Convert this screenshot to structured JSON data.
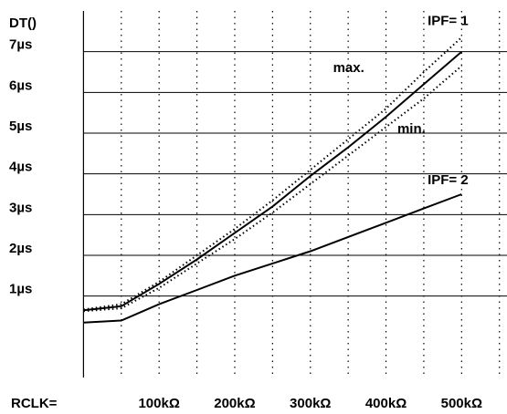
{
  "chart_data": {
    "type": "line",
    "y_axis_title": "DT()",
    "x_axis_title": "RCLK=",
    "x_unit": "kΩ",
    "y_unit": "µs",
    "xlim": [
      0,
      500
    ],
    "ylim": [
      0,
      8
    ],
    "grid": {
      "vertical_dotted": true,
      "horizontal_solid": true
    },
    "x_tick_labels": [
      "100kΩ",
      "200kΩ",
      "300kΩ",
      "400kΩ",
      "500kΩ"
    ],
    "x_tick_values": [
      100,
      200,
      300,
      400,
      500
    ],
    "y_tick_labels": [
      "1µs",
      "2µs",
      "3µs",
      "4µs",
      "5µs",
      "6µs",
      "7µs"
    ],
    "y_tick_values": [
      1,
      2,
      3,
      4,
      5,
      6,
      7
    ],
    "series": [
      {
        "name": "IPF= 1",
        "style": "solid",
        "points": [
          [
            0,
            0.65
          ],
          [
            50,
            0.75
          ],
          [
            100,
            1.3
          ],
          [
            150,
            1.9
          ],
          [
            200,
            2.55
          ],
          [
            250,
            3.2
          ],
          [
            300,
            3.95
          ],
          [
            350,
            4.65
          ],
          [
            400,
            5.4
          ],
          [
            450,
            6.2
          ],
          [
            500,
            7.0
          ]
        ]
      },
      {
        "name": "max.",
        "style": "dotted",
        "points": [
          [
            0,
            0.67
          ],
          [
            50,
            0.8
          ],
          [
            100,
            1.35
          ],
          [
            150,
            2.0
          ],
          [
            200,
            2.65
          ],
          [
            250,
            3.35
          ],
          [
            300,
            4.1
          ],
          [
            350,
            4.85
          ],
          [
            400,
            5.6
          ],
          [
            450,
            6.5
          ],
          [
            500,
            7.35
          ]
        ]
      },
      {
        "name": "min.",
        "style": "dotted",
        "points": [
          [
            0,
            0.63
          ],
          [
            50,
            0.7
          ],
          [
            100,
            1.2
          ],
          [
            150,
            1.8
          ],
          [
            200,
            2.4
          ],
          [
            250,
            3.05
          ],
          [
            300,
            3.75
          ],
          [
            350,
            4.45
          ],
          [
            400,
            5.15
          ],
          [
            450,
            5.85
          ],
          [
            500,
            6.65
          ]
        ]
      },
      {
        "name": "IPF= 2",
        "style": "solid",
        "points": [
          [
            0,
            0.35
          ],
          [
            50,
            0.4
          ],
          [
            100,
            0.8
          ],
          [
            150,
            1.15
          ],
          [
            200,
            1.5
          ],
          [
            250,
            1.8
          ],
          [
            300,
            2.1
          ],
          [
            350,
            2.45
          ],
          [
            400,
            2.8
          ],
          [
            450,
            3.15
          ],
          [
            500,
            3.5
          ]
        ]
      }
    ],
    "annotations": [
      {
        "text": "IPF= 1",
        "x": 455,
        "y": 7.65
      },
      {
        "text": "max.",
        "x": 330,
        "y": 6.5
      },
      {
        "text": "min.",
        "x": 415,
        "y": 5.0
      },
      {
        "text": "IPF= 2",
        "x": 455,
        "y": 3.75
      }
    ],
    "colors": {
      "line": "#000000",
      "grid": "#000000",
      "background": "#ffffff"
    }
  }
}
